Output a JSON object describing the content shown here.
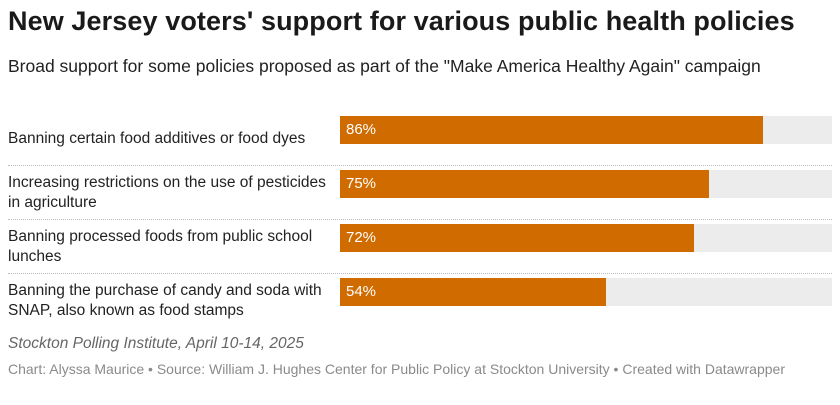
{
  "header": {
    "title": "New Jersey voters' support for various public health policies",
    "subtitle": "Broad support for some policies proposed as part of the \"Make America Healthy Again\" campaign"
  },
  "chart_data": {
    "type": "bar",
    "orientation": "horizontal",
    "categories": [
      "Banning certain food additives or food dyes",
      "Increasing restrictions on the use of pesticides in agriculture",
      "Banning processed foods from public school lunches",
      "Banning the purchase of candy and soda with SNAP, also known as food stamps"
    ],
    "values": [
      86,
      75,
      72,
      54
    ],
    "value_labels": [
      "86%",
      "75%",
      "72%",
      "54%"
    ],
    "xlim": [
      0,
      100
    ],
    "bar_color": "#d06b00",
    "track_color": "#ececec",
    "grid": false
  },
  "footer": {
    "note": "Stockton Polling Institute, April 10-14, 2025",
    "credit": "Chart: Alyssa Maurice • Source: William J. Hughes Center for Public Policy at Stockton University • Created with Datawrapper"
  }
}
